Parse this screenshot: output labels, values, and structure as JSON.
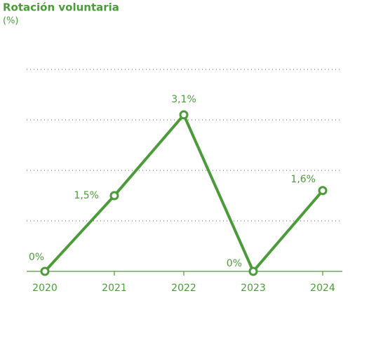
{
  "chart_data": {
    "type": "line",
    "title": "Rotación voluntaria",
    "subtitle": "(%)",
    "categories": [
      "2020",
      "2021",
      "2022",
      "2023",
      "2024"
    ],
    "values": [
      0,
      1.5,
      3.1,
      0,
      1.6
    ],
    "value_labels": [
      "0%",
      "1,5%",
      "3,1%",
      "0%",
      "1,6%"
    ],
    "color": "#4c9b3a",
    "ylim": [
      0,
      4
    ],
    "yticks": [
      0,
      1,
      2,
      3,
      4
    ],
    "grid": true
  }
}
